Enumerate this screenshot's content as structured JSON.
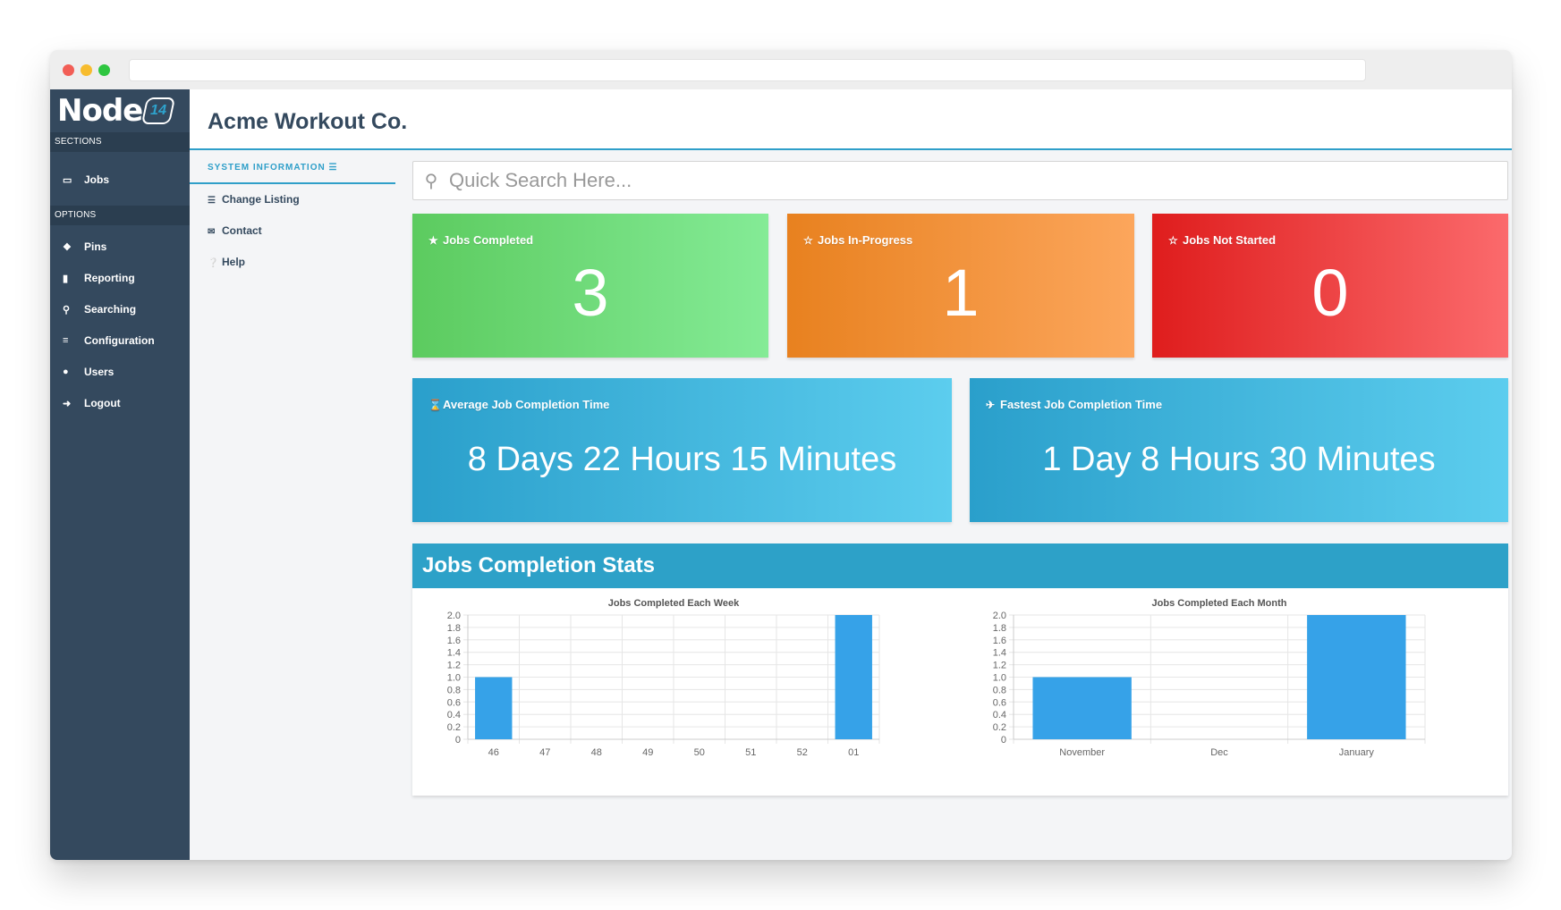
{
  "app": {
    "logo_text": "Node",
    "logo_badge": "14",
    "title": "Acme Workout Co."
  },
  "sidebar": {
    "sections_label": "SECTIONS",
    "options_label": "OPTIONS",
    "sections": [
      {
        "label": "Jobs",
        "icon": "inbox-icon"
      }
    ],
    "options": [
      {
        "label": "Pins",
        "icon": "pin-icon"
      },
      {
        "label": "Reporting",
        "icon": "file-icon"
      },
      {
        "label": "Searching",
        "icon": "search-icon"
      },
      {
        "label": "Configuration",
        "icon": "sliders-icon"
      },
      {
        "label": "Users",
        "icon": "users-icon"
      },
      {
        "label": "Logout",
        "icon": "logout-icon"
      }
    ]
  },
  "subnav": {
    "title": "SYSTEM INFORMATION",
    "items": [
      {
        "label": "Change Listing",
        "icon": "list-icon"
      },
      {
        "label": "Contact",
        "icon": "envelope-icon"
      },
      {
        "label": "Help",
        "icon": "question-icon"
      }
    ]
  },
  "search": {
    "placeholder": "Quick Search Here..."
  },
  "cards": {
    "completed": {
      "label": "Jobs Completed",
      "value": "3",
      "icon": "star-icon",
      "color": "#5ccb5f"
    },
    "in_progress": {
      "label": "Jobs In-Progress",
      "value": "1",
      "icon": "star-half-icon",
      "color": "#e8811f"
    },
    "not_started": {
      "label": "Jobs Not Started",
      "value": "0",
      "icon": "star-outline-icon",
      "color": "#df1d1d"
    },
    "average": {
      "label": "Average Job Completion Time",
      "value": "8 Days 22 Hours 15 Minutes",
      "icon": "hourglass-icon",
      "color": "#2a9fcb"
    },
    "fastest": {
      "label": "Fastest Job Completion Time",
      "value": "1 Day 8 Hours 30 Minutes",
      "icon": "plane-icon",
      "color": "#2a9fcb"
    }
  },
  "stats": {
    "title": "Jobs Completion Stats"
  },
  "chart_data": [
    {
      "type": "bar",
      "title": "Jobs Completed Each Week",
      "categories": [
        "46",
        "47",
        "48",
        "49",
        "50",
        "51",
        "52",
        "01"
      ],
      "values": [
        1,
        0,
        0,
        0,
        0,
        0,
        0,
        2
      ],
      "ylim": [
        0,
        2
      ],
      "yticks": [
        "0",
        "0.2",
        "0.4",
        "0.6",
        "0.8",
        "1.0",
        "1.2",
        "1.4",
        "1.6",
        "1.8",
        "2.0"
      ],
      "grid": true,
      "bar_color": "#36a2e8"
    },
    {
      "type": "bar",
      "title": "Jobs Completed Each Month",
      "categories": [
        "November",
        "Dec",
        "January"
      ],
      "values": [
        1,
        0,
        2
      ],
      "ylim": [
        0,
        2
      ],
      "yticks": [
        "0",
        "0.2",
        "0.4",
        "0.6",
        "0.8",
        "1.0",
        "1.2",
        "1.4",
        "1.6",
        "1.8",
        "2.0"
      ],
      "grid": true,
      "bar_color": "#36a2e8"
    }
  ]
}
